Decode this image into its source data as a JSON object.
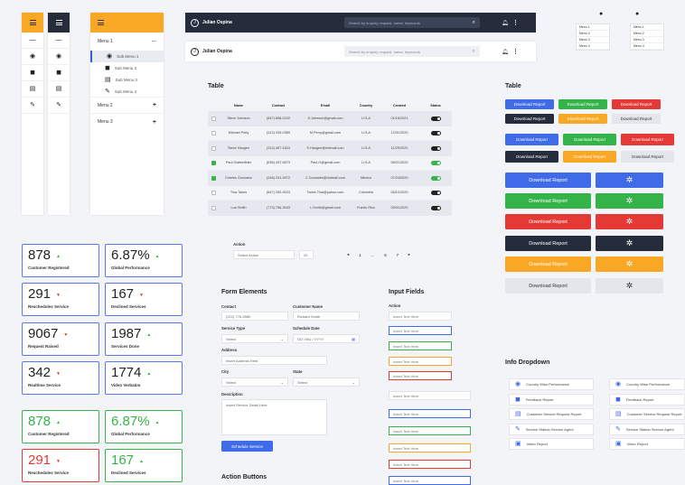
{
  "colors": {
    "accent": "#f9a826",
    "primary": "#3f6ae8",
    "success": "#34b448",
    "danger": "#e53935",
    "dark": "#252d3d",
    "light": "#e4e6ec"
  },
  "sidebar_wide": {
    "menu1": "Menu 1",
    "menu2": "Menu 2",
    "menu3": "Menu 3",
    "subs": [
      "Sub Menu 1",
      "Sub Menu 2",
      "Sub Menu 3",
      "Sub Menu 4"
    ]
  },
  "topbar": {
    "user": "Julian Ospina",
    "search_placeholder": "Search by enquiry, request, name, keywords"
  },
  "dropdown_lists": {
    "items": [
      "Menu 1",
      "Menu 2",
      "Menu 3",
      "Menu 4"
    ]
  },
  "table": {
    "heading": "Table",
    "columns": [
      "Name",
      "Contact",
      "Email",
      "Country",
      "Created",
      "Status"
    ],
    "rows": [
      {
        "name": "Steve Johnson",
        "contact": "(847) 858-0242",
        "email": "S.Johnson@gmail.com",
        "country": "U.S.A",
        "created": "01/16/2021",
        "checked": false,
        "on": false
      },
      {
        "name": "Michael Petty",
        "contact": "(312) 339-0369",
        "email": "M.Perry@gmail.com",
        "country": "U.S.A",
        "created": "12/31/2020",
        "checked": false,
        "on": false
      },
      {
        "name": "Steve Haugen",
        "contact": "(312) 467-1624",
        "email": "S.Haugen@hotmail.com",
        "country": "U.S.A",
        "created": "11/29/2020",
        "checked": false,
        "on": false
      },
      {
        "name": "Paul Gabbellefer",
        "contact": "(636) 437-6573",
        "email": "Paul.G@gmail.com",
        "country": "U.S.A",
        "created": "08/21/2020",
        "checked": true,
        "on": true
      },
      {
        "name": "Charles Gonzalez",
        "contact": "(248) 231-9972",
        "email": "C.Gonzales@hotmail.com",
        "country": "Mexico",
        "created": "07/24/2020",
        "checked": true,
        "on": true
      },
      {
        "name": "Tina Tanes",
        "contact": "(847) 282-9023",
        "email": "Tanes.Tina@yahoo.com",
        "country": "Colombia",
        "created": "06/12/2020",
        "checked": false,
        "on": false
      },
      {
        "name": "Lua Smith",
        "contact": "(773) 756-3043",
        "email": "L.Smith@gmail.com",
        "country": "Puerto Rico",
        "created": "05/01/2020",
        "checked": false,
        "on": false
      }
    ]
  },
  "action": {
    "label": "Action",
    "select": "Select Action",
    "count": "20"
  },
  "pagination": {
    "prev": "◂",
    "p1": "1",
    "dots": "…",
    "p6": "6",
    "p7": "7",
    "next": "▸"
  },
  "stats": [
    {
      "value": "878",
      "label": "Customer Registered",
      "trend": "up"
    },
    {
      "value": "6.87%",
      "label": "Global Performance",
      "trend": "up"
    },
    {
      "value": "291",
      "label": "Reschedules Service",
      "trend": "down"
    },
    {
      "value": "167",
      "label": "Declined Services",
      "trend": "down"
    },
    {
      "value": "9067",
      "label": "Request Raised",
      "trend": "down"
    },
    {
      "value": "1987",
      "label": "Services Done",
      "trend": "up"
    },
    {
      "value": "342",
      "label": "Realtime Service",
      "trend": "down"
    },
    {
      "value": "1774",
      "label": "Video Verbatim",
      "trend": "up"
    },
    {
      "value": "878",
      "label": "Customer Registered",
      "trend": "up"
    },
    {
      "value": "6.87%",
      "label": "Global Performance",
      "trend": "up"
    },
    {
      "value": "291",
      "label": "Reschedules Service",
      "trend": "down"
    },
    {
      "value": "167",
      "label": "Declined Services",
      "trend": "up"
    }
  ],
  "form": {
    "heading": "Form Elements",
    "contact_label": "Contact",
    "contact_value": "(212) 776-5980",
    "customer_label": "Customer Name",
    "customer_value": "Richard Smith",
    "service_label": "Service Type",
    "service_value": "Select",
    "date_label": "Schedule Date",
    "date_value": "DD / MU / YYYY",
    "address_label": "Address",
    "address_value": "Insert Address Here",
    "city_label": "City",
    "city_value": "Select",
    "state_label": "State",
    "state_value": "Select",
    "desc_label": "Description",
    "desc_value": "Insert Service Detail Here",
    "submit": "Schedule Service"
  },
  "inputs": {
    "heading": "Input Fields",
    "action_label": "Action",
    "placeholder": "Insert Text Here"
  },
  "buttons": {
    "label": "Download Report"
  },
  "action_buttons_heading": "Action Buttons",
  "info": {
    "heading": "Info Dropdown",
    "items": [
      "Country Wise Performance",
      "Feedback Report",
      "Customer Service Request Report",
      "Service Station Service Agent",
      "Video Report"
    ]
  }
}
